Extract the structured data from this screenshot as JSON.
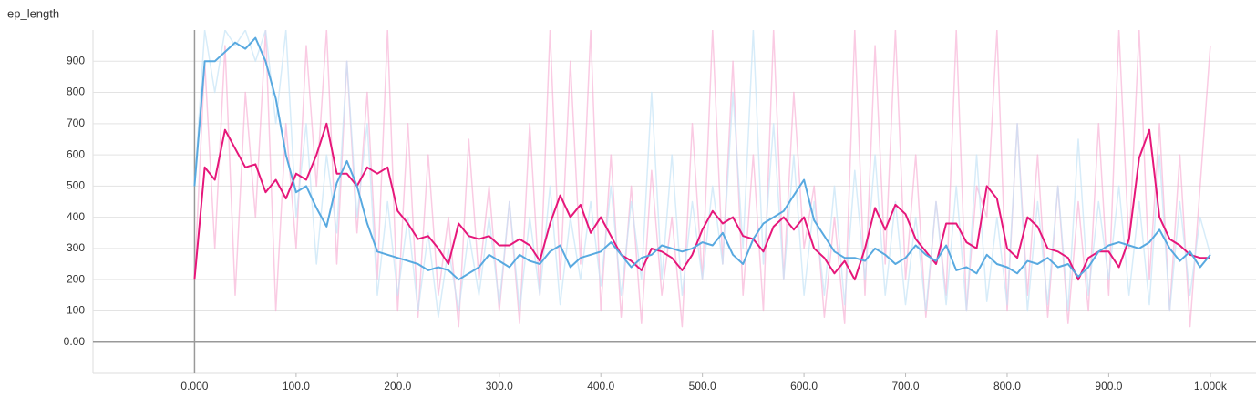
{
  "chart_data": {
    "type": "line",
    "title": "ep_length",
    "x": [
      0,
      10,
      20,
      30,
      40,
      50,
      60,
      70,
      80,
      90,
      100,
      110,
      120,
      130,
      140,
      150,
      160,
      170,
      180,
      190,
      200,
      210,
      220,
      230,
      240,
      250,
      260,
      270,
      280,
      290,
      300,
      310,
      320,
      330,
      340,
      350,
      360,
      370,
      380,
      390,
      400,
      410,
      420,
      430,
      440,
      450,
      460,
      470,
      480,
      490,
      500,
      510,
      520,
      530,
      540,
      550,
      560,
      570,
      580,
      590,
      600,
      610,
      620,
      630,
      640,
      650,
      660,
      670,
      680,
      690,
      700,
      710,
      720,
      730,
      740,
      750,
      760,
      770,
      780,
      790,
      800,
      810,
      820,
      830,
      840,
      850,
      860,
      870,
      880,
      890,
      900,
      910,
      920,
      930,
      940,
      950,
      960,
      970,
      980,
      990,
      1000
    ],
    "series": [
      {
        "color": "#f7a8d0",
        "opacity": 0.6,
        "values": [
          200,
          900,
          300,
          950,
          150,
          800,
          400,
          1000,
          100,
          700,
          300,
          950,
          500,
          1000,
          250,
          900,
          350,
          800,
          200,
          1000,
          100,
          700,
          80,
          600,
          150,
          400,
          50,
          650,
          200,
          500,
          100,
          450,
          60,
          700,
          150,
          1000,
          200,
          900,
          250,
          1000,
          100,
          600,
          80,
          500,
          60,
          550,
          150,
          400,
          50,
          700,
          200,
          1000,
          250,
          900,
          150,
          600,
          100,
          1000,
          200,
          800,
          300,
          500,
          80,
          400,
          60,
          1000,
          150,
          950,
          250,
          1000,
          200,
          600,
          80,
          450,
          150,
          1000,
          100,
          500,
          400,
          1000,
          100,
          700,
          150,
          600,
          80,
          500,
          60,
          450,
          100,
          700,
          150,
          1000,
          300,
          1000,
          200,
          700,
          100,
          600,
          50,
          500,
          950
        ]
      },
      {
        "color": "#c6e4f7",
        "opacity": 0.7,
        "values": [
          500,
          1000,
          800,
          1000,
          950,
          1000,
          900,
          1000,
          700,
          1000,
          400,
          700,
          250,
          600,
          350,
          900,
          400,
          700,
          150,
          450,
          150,
          400,
          100,
          350,
          80,
          300,
          100,
          350,
          150,
          400,
          120,
          450,
          100,
          400,
          150,
          500,
          120,
          400,
          200,
          450,
          180,
          500,
          150,
          450,
          200,
          800,
          200,
          600,
          150,
          450,
          200,
          500,
          250,
          800,
          300,
          1000,
          250,
          700,
          200,
          600,
          150,
          450,
          150,
          500,
          120,
          550,
          200,
          600,
          150,
          450,
          120,
          400,
          100,
          450,
          120,
          500,
          100,
          600,
          130,
          400,
          120,
          700,
          100,
          450,
          120,
          500,
          100,
          650,
          150,
          450,
          200,
          500,
          150,
          450,
          120,
          600,
          100,
          450,
          150,
          400,
          280
        ]
      },
      {
        "color": "#e6177a",
        "opacity": 1,
        "values": [
          200,
          560,
          520,
          680,
          620,
          560,
          570,
          480,
          520,
          460,
          540,
          520,
          600,
          700,
          540,
          540,
          500,
          560,
          540,
          560,
          420,
          380,
          330,
          340,
          300,
          250,
          380,
          340,
          330,
          340,
          310,
          310,
          330,
          310,
          260,
          380,
          470,
          400,
          440,
          350,
          400,
          340,
          280,
          260,
          230,
          300,
          290,
          270,
          230,
          280,
          360,
          420,
          380,
          400,
          340,
          330,
          290,
          370,
          400,
          360,
          400,
          300,
          270,
          220,
          260,
          200,
          300,
          430,
          360,
          440,
          410,
          330,
          290,
          250,
          380,
          380,
          320,
          300,
          500,
          460,
          300,
          270,
          400,
          370,
          300,
          290,
          270,
          200,
          270,
          290,
          290,
          240,
          330,
          590,
          680,
          400,
          330,
          310,
          280,
          270,
          270
        ]
      },
      {
        "color": "#58a9e0",
        "opacity": 1,
        "values": [
          500,
          900,
          900,
          930,
          960,
          940,
          975,
          900,
          780,
          600,
          480,
          500,
          430,
          370,
          510,
          580,
          500,
          380,
          290,
          280,
          270,
          260,
          250,
          230,
          240,
          230,
          200,
          220,
          240,
          280,
          260,
          240,
          280,
          260,
          250,
          290,
          310,
          240,
          270,
          280,
          290,
          320,
          280,
          240,
          270,
          280,
          310,
          300,
          290,
          300,
          320,
          310,
          350,
          280,
          250,
          330,
          380,
          400,
          420,
          470,
          520,
          390,
          340,
          290,
          270,
          270,
          260,
          300,
          280,
          250,
          270,
          310,
          280,
          260,
          310,
          230,
          240,
          220,
          280,
          250,
          240,
          220,
          260,
          250,
          270,
          240,
          250,
          210,
          240,
          290,
          310,
          320,
          310,
          300,
          320,
          360,
          300,
          260,
          290,
          240,
          280
        ]
      }
    ],
    "xlim": [
      -100,
      1045
    ],
    "ylim": [
      -100,
      1000
    ],
    "xticks": [
      {
        "value": 0,
        "label": "0.000"
      },
      {
        "value": 100,
        "label": "100.0"
      },
      {
        "value": 200,
        "label": "200.0"
      },
      {
        "value": 300,
        "label": "300.0"
      },
      {
        "value": 400,
        "label": "400.0"
      },
      {
        "value": 500,
        "label": "500.0"
      },
      {
        "value": 600,
        "label": "600.0"
      },
      {
        "value": 700,
        "label": "700.0"
      },
      {
        "value": 800,
        "label": "800.0"
      },
      {
        "value": 900,
        "label": "900.0"
      },
      {
        "value": 1000,
        "label": "1.000k"
      }
    ],
    "yticks": [
      {
        "value": 0,
        "label": "0.00"
      },
      100,
      200,
      300,
      400,
      500,
      600,
      700,
      800,
      900
    ],
    "grid": true
  }
}
